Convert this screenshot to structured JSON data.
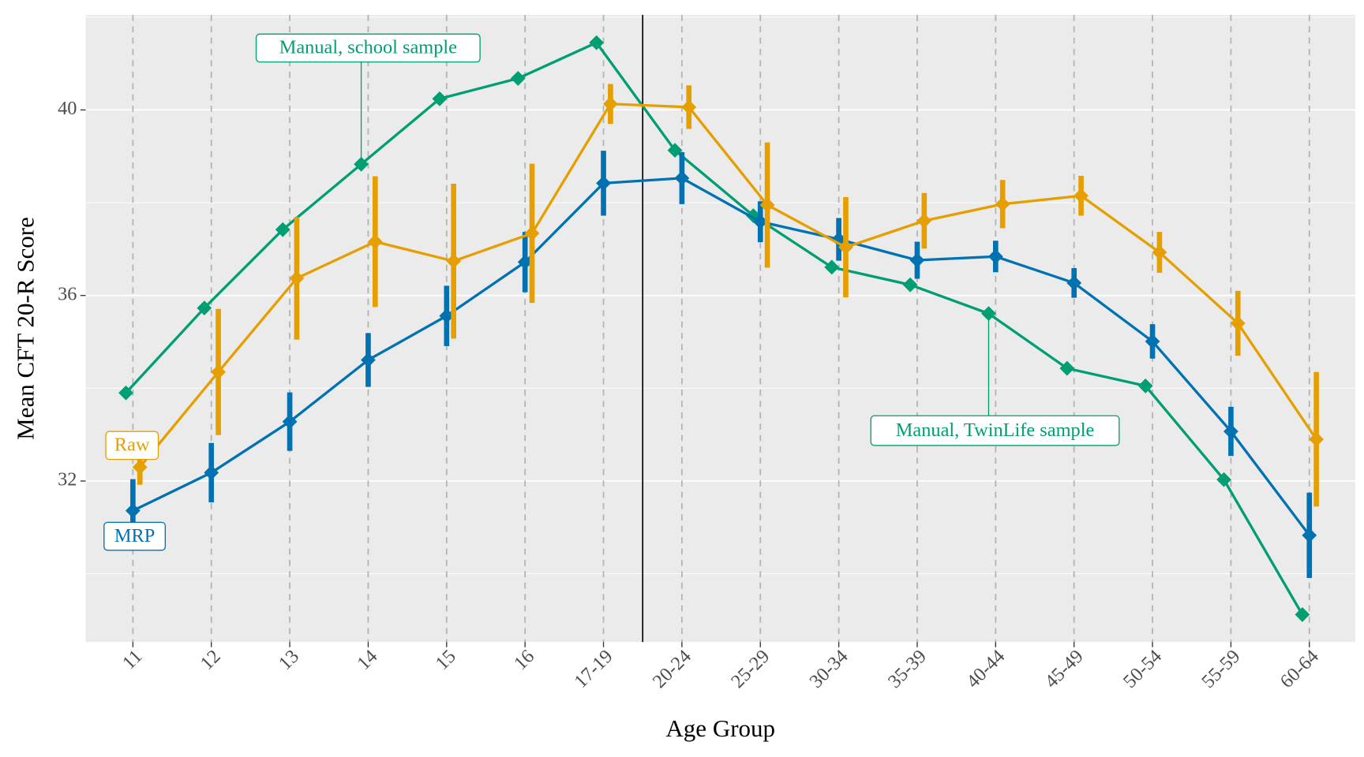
{
  "chart_data": {
    "type": "line",
    "x_label": "Age Group",
    "y_label": "Mean CFT 20-R Score",
    "categories": [
      "11",
      "12",
      "13",
      "14",
      "15",
      "16",
      "17-19",
      "20-24",
      "25-29",
      "30-34",
      "35-39",
      "40-44",
      "45-49",
      "50-54",
      "55-59",
      "60-64"
    ],
    "ylim": [
      28.53,
      42.05
    ],
    "yticks": [
      32,
      36,
      40
    ],
    "yminor": [
      30,
      34,
      38,
      42
    ],
    "grid": true,
    "series": [
      {
        "color": "#009E73",
        "values": [
          33.9,
          35.73,
          37.42,
          38.83,
          40.24,
          40.68,
          41.45,
          39.13,
          37.72,
          36.61,
          36.23,
          35.61,
          34.43,
          34.05,
          32.03,
          29.12
        ]
      },
      {
        "name": "MRP",
        "color": "#0072B2",
        "values": [
          31.36,
          32.18,
          33.28,
          34.61,
          35.56,
          36.72,
          38.42,
          38.53,
          37.59,
          37.21,
          36.76,
          36.84,
          36.27,
          35.01,
          33.07,
          30.83
        ],
        "errors": [
          0.68,
          0.64,
          0.63,
          0.58,
          0.65,
          0.65,
          0.7,
          0.56,
          0.44,
          0.46,
          0.4,
          0.34,
          0.32,
          0.37,
          0.53,
          0.92
        ]
      },
      {
        "name": "Raw",
        "color": "#E69F00",
        "values": [
          32.3,
          34.35,
          36.37,
          37.16,
          36.74,
          37.34,
          40.13,
          40.06,
          37.95,
          37.04,
          37.61,
          37.97,
          38.15,
          36.93,
          35.4,
          32.9
        ],
        "errors": [
          0.38,
          1.36,
          1.32,
          1.41,
          1.67,
          1.5,
          0.43,
          0.47,
          1.35,
          1.08,
          0.6,
          0.52,
          0.43,
          0.44,
          0.7,
          1.45
        ]
      }
    ],
    "annotations": [
      "Manual, school sample",
      "Manual, TwinLife sample"
    ]
  }
}
